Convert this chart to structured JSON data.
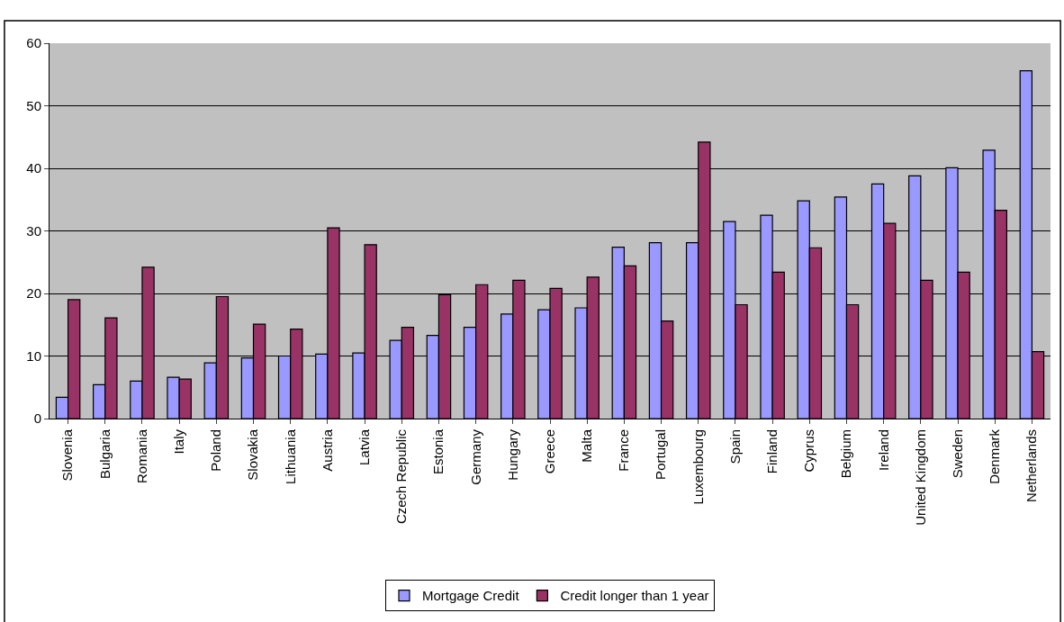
{
  "chart_data": {
    "type": "bar",
    "categories": [
      "Slovenia",
      "Bulgaria",
      "Romania",
      "Italy",
      "Poland",
      "Slovakia",
      "Lithuania",
      "Austria",
      "Latvia",
      "Czech Republic",
      "Estonia",
      "Germany",
      "Hungary",
      "Greece",
      "Malta",
      "France",
      "Portugal",
      "Luxembourg",
      "Spain",
      "Finland",
      "Cyprus",
      "Belgium",
      "Ireland",
      "United Kingdom",
      "Sweden",
      "Denmark",
      "Netherlands"
    ],
    "series": [
      {
        "name": "Mortgage Credit",
        "color": "#9999ff",
        "values": [
          3.4,
          5.4,
          6.0,
          6.6,
          8.9,
          9.7,
          10.0,
          10.3,
          10.5,
          12.5,
          13.3,
          14.6,
          16.7,
          17.4,
          17.7,
          27.4,
          28.1,
          28.1,
          31.5,
          32.5,
          34.8,
          35.4,
          37.5,
          38.8,
          40.1,
          42.9,
          55.6
        ]
      },
      {
        "name": "Credit longer than 1 year",
        "color": "#993366",
        "values": [
          19.0,
          16.1,
          24.2,
          6.3,
          19.5,
          15.1,
          14.3,
          30.5,
          27.8,
          14.6,
          19.8,
          21.4,
          22.1,
          20.8,
          22.6,
          24.4,
          15.6,
          44.2,
          18.2,
          23.4,
          27.3,
          18.2,
          31.2,
          22.1,
          23.4,
          33.3,
          10.7
        ]
      }
    ],
    "ylim": [
      0,
      60
    ],
    "yticks": [
      0,
      10,
      20,
      30,
      40,
      50,
      60
    ],
    "grid": "y",
    "legend": "bottom"
  }
}
